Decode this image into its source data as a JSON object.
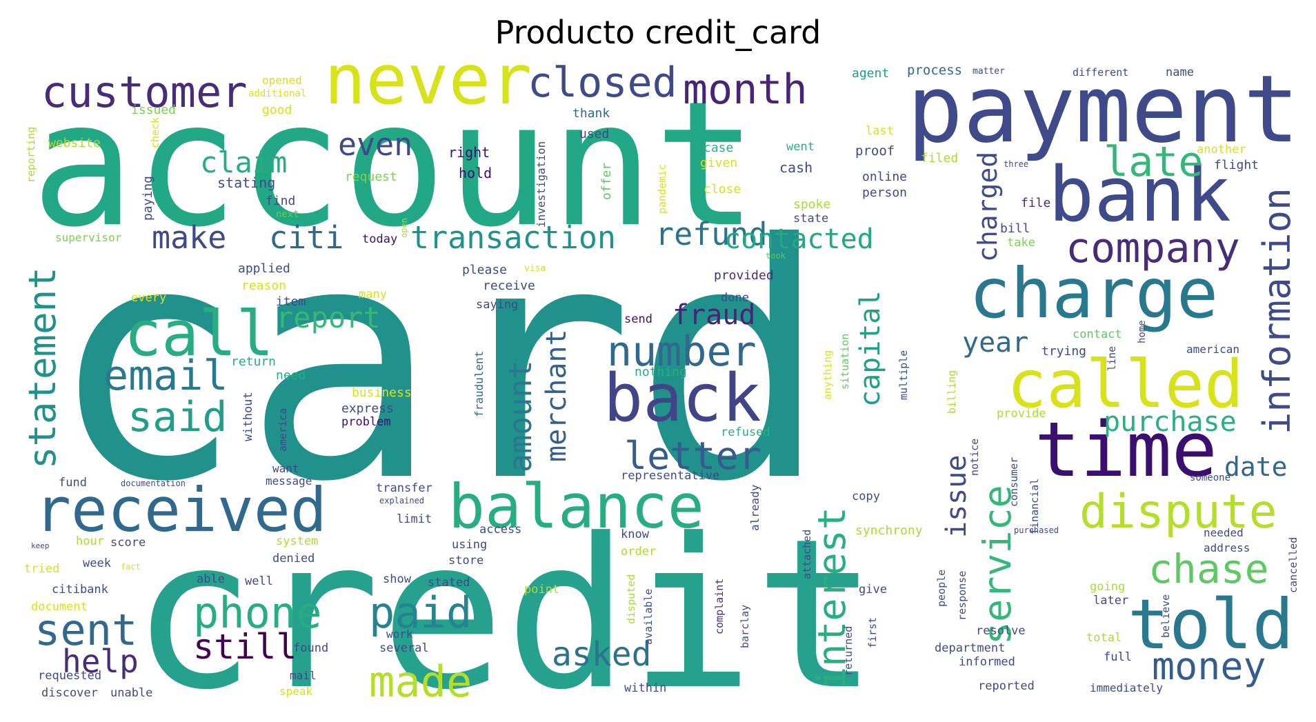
{
  "title": "Producto credit_card",
  "palette": {
    "purple": "#472c7a",
    "darkpurple": "#3b0f70",
    "indigo": "#3e4a89",
    "blue": "#31688e",
    "steel": "#365c8d",
    "teal": "#25858e",
    "cyan": "#21918c",
    "green": "#27ad81",
    "lightgreen": "#5ec962",
    "lime": "#aadc32",
    "yellow": "#d8e219",
    "brightyellow": "#e8e419"
  },
  "words": [
    {
      "text": "card",
      "color": "#21918c"
    },
    {
      "text": "credit",
      "color": "#25a18e"
    },
    {
      "text": "account",
      "color": "#22a884"
    },
    {
      "text": "payment",
      "color": "#3e4a89"
    },
    {
      "text": "bank",
      "color": "#3e4a89"
    },
    {
      "text": "charge",
      "color": "#2a788e"
    },
    {
      "text": "never",
      "color": "#d8e219"
    },
    {
      "text": "customer",
      "color": "#472c7a"
    },
    {
      "text": "closed",
      "color": "#3e4a89"
    },
    {
      "text": "month",
      "color": "#482475"
    },
    {
      "text": "received",
      "color": "#31688e"
    },
    {
      "text": "balance",
      "color": "#27ad81"
    },
    {
      "text": "time",
      "color": "#3b0f70"
    },
    {
      "text": "told",
      "color": "#2a788e"
    },
    {
      "text": "called",
      "color": "#d8e219"
    },
    {
      "text": "back",
      "color": "#414487"
    },
    {
      "text": "call",
      "color": "#27ad81"
    },
    {
      "text": "dispute",
      "color": "#b5de2b"
    },
    {
      "text": "information",
      "color": "#3e4a89"
    },
    {
      "text": "company",
      "color": "#472c7a"
    },
    {
      "text": "late",
      "color": "#35b779"
    },
    {
      "text": "number",
      "color": "#31688e"
    },
    {
      "text": "email",
      "color": "#2a788e"
    },
    {
      "text": "said",
      "color": "#1f9e89"
    },
    {
      "text": "statement",
      "color": "#21918c"
    },
    {
      "text": "phone",
      "color": "#27ad81"
    },
    {
      "text": "paid",
      "color": "#25858e"
    },
    {
      "text": "made",
      "color": "#b5de2b"
    },
    {
      "text": "sent",
      "color": "#31688e"
    },
    {
      "text": "help",
      "color": "#472c7a"
    },
    {
      "text": "still",
      "color": "#440154"
    },
    {
      "text": "asked",
      "color": "#2c728e"
    },
    {
      "text": "money",
      "color": "#365c8d"
    },
    {
      "text": "chase",
      "color": "#5ec962"
    },
    {
      "text": "service",
      "color": "#35b779"
    },
    {
      "text": "interest",
      "color": "#29af7f"
    },
    {
      "text": "letter",
      "color": "#365c8d"
    },
    {
      "text": "purchase",
      "color": "#2ab07f"
    },
    {
      "text": "date",
      "color": "#31688e"
    },
    {
      "text": "issue",
      "color": "#3e4a89"
    },
    {
      "text": "capital",
      "color": "#1f9e89"
    },
    {
      "text": "transaction",
      "color": "#21918c"
    },
    {
      "text": "refund",
      "color": "#2c728e"
    },
    {
      "text": "contacted",
      "color": "#22a884"
    },
    {
      "text": "claim",
      "color": "#27ad81"
    },
    {
      "text": "even",
      "color": "#3e4a89"
    },
    {
      "text": "make",
      "color": "#3e4a89"
    },
    {
      "text": "citi",
      "color": "#31688e"
    },
    {
      "text": "report",
      "color": "#35b779"
    },
    {
      "text": "fraud",
      "color": "#482475"
    },
    {
      "text": "amount",
      "color": "#2a788e"
    },
    {
      "text": "merchant",
      "color": "#355f8d"
    },
    {
      "text": "year",
      "color": "#31688e"
    },
    {
      "text": "charged",
      "color": "#3e4a89"
    },
    {
      "text": "stating",
      "color": "#3e4a89"
    },
    {
      "text": "right",
      "color": "#3b0f70"
    },
    {
      "text": "hold",
      "color": "#3b0f70"
    },
    {
      "text": "request",
      "color": "#7ad151"
    },
    {
      "text": "issued",
      "color": "#7ad151"
    },
    {
      "text": "good",
      "color": "#d8e219"
    },
    {
      "text": "opened",
      "color": "#d8e219"
    },
    {
      "text": "additional",
      "color": "#d8e219"
    },
    {
      "text": "website",
      "color": "#aadc32"
    },
    {
      "text": "reporting",
      "color": "#aadc32"
    },
    {
      "text": "check",
      "color": "#d8e219"
    },
    {
      "text": "paying",
      "color": "#3e4a89"
    },
    {
      "text": "find",
      "color": "#3e4a89"
    },
    {
      "text": "next",
      "color": "#5ec962"
    },
    {
      "text": "supervisor",
      "color": "#7ad151"
    },
    {
      "text": "today",
      "color": "#3b0f70"
    },
    {
      "text": "open",
      "color": "#aadc32"
    },
    {
      "text": "thank",
      "color": "#31688e"
    },
    {
      "text": "used",
      "color": "#3e4a89"
    },
    {
      "text": "investigation",
      "color": "#3e4a89"
    },
    {
      "text": "offer",
      "color": "#5ec962"
    },
    {
      "text": "pandemic",
      "color": "#d8e219"
    },
    {
      "text": "case",
      "color": "#2ab07f"
    },
    {
      "text": "given",
      "color": "#d8e219"
    },
    {
      "text": "close",
      "color": "#d8e219"
    },
    {
      "text": "went",
      "color": "#2ab07f"
    },
    {
      "text": "cash",
      "color": "#3e4a89"
    },
    {
      "text": "spoke",
      "color": "#aadc32"
    },
    {
      "text": "state",
      "color": "#3e4a89"
    },
    {
      "text": "agent",
      "color": "#1f9e89"
    },
    {
      "text": "process",
      "color": "#31688e"
    },
    {
      "text": "matter",
      "color": "#3e4a89"
    },
    {
      "text": "different",
      "color": "#3e4a89"
    },
    {
      "text": "name",
      "color": "#3e4a89"
    },
    {
      "text": "last",
      "color": "#d8e219"
    },
    {
      "text": "proof",
      "color": "#3e4a89"
    },
    {
      "text": "filed",
      "color": "#aadc32"
    },
    {
      "text": "three",
      "color": "#3e4a89"
    },
    {
      "text": "online",
      "color": "#3e4a89"
    },
    {
      "text": "person",
      "color": "#3e4a89"
    },
    {
      "text": "file",
      "color": "#472c7a"
    },
    {
      "text": "another",
      "color": "#d8e219"
    },
    {
      "text": "flight",
      "color": "#3e4a89"
    },
    {
      "text": "bill",
      "color": "#3e4a89"
    },
    {
      "text": "take",
      "color": "#7ad151"
    },
    {
      "text": "took",
      "color": "#5ec962"
    },
    {
      "text": "applied",
      "color": "#3e4a89"
    },
    {
      "text": "reason",
      "color": "#d8e219"
    },
    {
      "text": "every",
      "color": "#d8e219"
    },
    {
      "text": "item",
      "color": "#3e4a89"
    },
    {
      "text": "please",
      "color": "#3e4a89"
    },
    {
      "text": "visa",
      "color": "#d8e219"
    },
    {
      "text": "receive",
      "color": "#3e4a89"
    },
    {
      "text": "saying",
      "color": "#3e4a89"
    },
    {
      "text": "many",
      "color": "#d8e219"
    },
    {
      "text": "provided",
      "color": "#472c7a"
    },
    {
      "text": "done",
      "color": "#3e4a89"
    },
    {
      "text": "send",
      "color": "#3b0f70"
    },
    {
      "text": "return",
      "color": "#27ad81"
    },
    {
      "text": "need",
      "color": "#27ad81"
    },
    {
      "text": "nothing",
      "color": "#27ad81"
    },
    {
      "text": "business",
      "color": "#d8e219"
    },
    {
      "text": "express",
      "color": "#3e4a89"
    },
    {
      "text": "problem",
      "color": "#3b0f70"
    },
    {
      "text": "fraudulent",
      "color": "#31688e"
    },
    {
      "text": "without",
      "color": "#3e4a89"
    },
    {
      "text": "america",
      "color": "#3e4a89"
    },
    {
      "text": "anything",
      "color": "#d8e219"
    },
    {
      "text": "situation",
      "color": "#5ec962"
    },
    {
      "text": "multiple",
      "color": "#3e4a89"
    },
    {
      "text": "contact",
      "color": "#5ec962"
    },
    {
      "text": "trying",
      "color": "#3e4a89"
    },
    {
      "text": "line",
      "color": "#3e4a89"
    },
    {
      "text": "home",
      "color": "#3e4a89"
    },
    {
      "text": "american",
      "color": "#3e4a89"
    },
    {
      "text": "billing",
      "color": "#aadc32"
    },
    {
      "text": "provide",
      "color": "#aadc32"
    },
    {
      "text": "refused",
      "color": "#2ab07f"
    },
    {
      "text": "want",
      "color": "#3e4a89"
    },
    {
      "text": "message",
      "color": "#3e4a89"
    },
    {
      "text": "fund",
      "color": "#3e4a89"
    },
    {
      "text": "documentation",
      "color": "#3e4a89"
    },
    {
      "text": "transfer",
      "color": "#3e4a89"
    },
    {
      "text": "explained",
      "color": "#3e4a89"
    },
    {
      "text": "limit",
      "color": "#3e4a89"
    },
    {
      "text": "representative",
      "color": "#3e4a89"
    },
    {
      "text": "already",
      "color": "#3e4a89"
    },
    {
      "text": "notice",
      "color": "#3e4a89"
    },
    {
      "text": "consumer",
      "color": "#3e4a89"
    },
    {
      "text": "financial",
      "color": "#3e4a89"
    },
    {
      "text": "someone",
      "color": "#3e4a89"
    },
    {
      "text": "copy",
      "color": "#3e4a89"
    },
    {
      "text": "keep",
      "color": "#3e4a89"
    },
    {
      "text": "hour",
      "color": "#aadc32"
    },
    {
      "text": "score",
      "color": "#3e4a89"
    },
    {
      "text": "system",
      "color": "#aadc32"
    },
    {
      "text": "access",
      "color": "#3e4a89"
    },
    {
      "text": "using",
      "color": "#3e4a89"
    },
    {
      "text": "know",
      "color": "#3e4a89"
    },
    {
      "text": "synchrony",
      "color": "#aadc32"
    },
    {
      "text": "purchased",
      "color": "#3e4a89"
    },
    {
      "text": "needed",
      "color": "#3e4a89"
    },
    {
      "text": "cancelled",
      "color": "#3e4a89"
    },
    {
      "text": "address",
      "color": "#3e4a89"
    },
    {
      "text": "tried",
      "color": "#d8e219"
    },
    {
      "text": "week",
      "color": "#3e4a89"
    },
    {
      "text": "fact",
      "color": "#d8e219"
    },
    {
      "text": "denied",
      "color": "#3e4a89"
    },
    {
      "text": "store",
      "color": "#3e4a89"
    },
    {
      "text": "order",
      "color": "#aadc32"
    },
    {
      "text": "attached",
      "color": "#3e4a89"
    },
    {
      "text": "citibank",
      "color": "#3e4a89"
    },
    {
      "text": "able",
      "color": "#3e4a89"
    },
    {
      "text": "well",
      "color": "#3e4a89"
    },
    {
      "text": "show",
      "color": "#3e4a89"
    },
    {
      "text": "stated",
      "color": "#3e4a89"
    },
    {
      "text": "point",
      "color": "#aadc32"
    },
    {
      "text": "disputed",
      "color": "#aadc32"
    },
    {
      "text": "available",
      "color": "#3e4a89"
    },
    {
      "text": "complaint",
      "color": "#472c7a"
    },
    {
      "text": "barclay",
      "color": "#3e4a89"
    },
    {
      "text": "give",
      "color": "#3e4a89"
    },
    {
      "text": "response",
      "color": "#3e4a89"
    },
    {
      "text": "people",
      "color": "#3e4a89"
    },
    {
      "text": "going",
      "color": "#aadc32"
    },
    {
      "text": "later",
      "color": "#3e4a89"
    },
    {
      "text": "believe",
      "color": "#3e4a89"
    },
    {
      "text": "document",
      "color": "#d8e219"
    },
    {
      "text": "work",
      "color": "#3e4a89"
    },
    {
      "text": "several",
      "color": "#3e4a89"
    },
    {
      "text": "returned",
      "color": "#3e4a89"
    },
    {
      "text": "first",
      "color": "#3e4a89"
    },
    {
      "text": "resolve",
      "color": "#3e4a89"
    },
    {
      "text": "department",
      "color": "#3e4a89"
    },
    {
      "text": "informed",
      "color": "#3e4a89"
    },
    {
      "text": "total",
      "color": "#aadc32"
    },
    {
      "text": "full",
      "color": "#3e4a89"
    },
    {
      "text": "found",
      "color": "#3e4a89"
    },
    {
      "text": "mail",
      "color": "#3e4a89"
    },
    {
      "text": "requested",
      "color": "#3e4a89"
    },
    {
      "text": "speak",
      "color": "#d8e219"
    },
    {
      "text": "discover",
      "color": "#3e4a89"
    },
    {
      "text": "unable",
      "color": "#3e4a89"
    },
    {
      "text": "within",
      "color": "#3e4a89"
    },
    {
      "text": "reported",
      "color": "#3e4a89"
    },
    {
      "text": "immediately",
      "color": "#3e4a89"
    }
  ]
}
